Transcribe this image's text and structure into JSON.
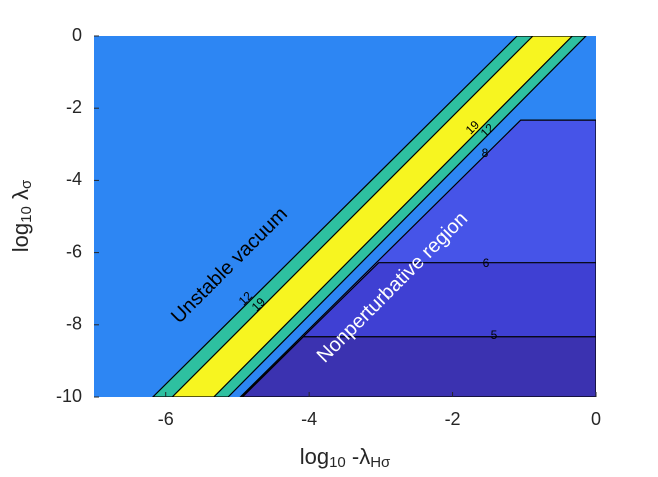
{
  "chart_data": {
    "type": "contour",
    "xlabel": [
      "log",
      "10",
      " -λ",
      "Hσ"
    ],
    "ylabel": [
      "log",
      "10",
      " λ",
      "σ"
    ],
    "xlim": [
      -7,
      0
    ],
    "ylim": [
      -10,
      0
    ],
    "xticks": [
      -6,
      -4,
      -2,
      0
    ],
    "yticks": [
      0,
      -2,
      -4,
      -6,
      -8,
      -10
    ],
    "regions": [
      {
        "color": "#2d86f3",
        "points": [
          [
            -7,
            -10
          ],
          [
            -7,
            0
          ],
          [
            0,
            0
          ],
          [
            0,
            -10
          ]
        ]
      },
      {
        "color": "#2ec0a0",
        "points": [
          [
            -6.18,
            -10
          ],
          [
            -1.1,
            0
          ],
          [
            -0.14,
            0
          ],
          [
            -5.13,
            -10
          ]
        ]
      },
      {
        "color": "#f7f520",
        "points": [
          [
            -5.91,
            -10
          ],
          [
            -0.88,
            0
          ],
          [
            -0.33,
            0
          ],
          [
            -5.33,
            -10
          ]
        ]
      },
      {
        "color": "#4654e8",
        "points": [
          [
            -4.96,
            -10
          ],
          [
            -1.05,
            -2.33
          ],
          [
            0,
            -2.33
          ],
          [
            0,
            -10
          ]
        ]
      },
      {
        "color": "#3f40d3",
        "points": [
          [
            -4.94,
            -10
          ],
          [
            -3.03,
            -6.28
          ],
          [
            0,
            -6.28
          ],
          [
            0,
            -10
          ]
        ]
      },
      {
        "color": "#3b32b0",
        "points": [
          [
            -4.93,
            -10
          ],
          [
            -4.08,
            -8.33
          ],
          [
            0,
            -8.33
          ],
          [
            0,
            -10
          ]
        ]
      }
    ],
    "contour_labels": [
      12,
      19,
      19,
      12,
      8,
      6,
      5
    ],
    "annotations": [
      "Unstable vacuum",
      "Nonperturbative region"
    ]
  }
}
